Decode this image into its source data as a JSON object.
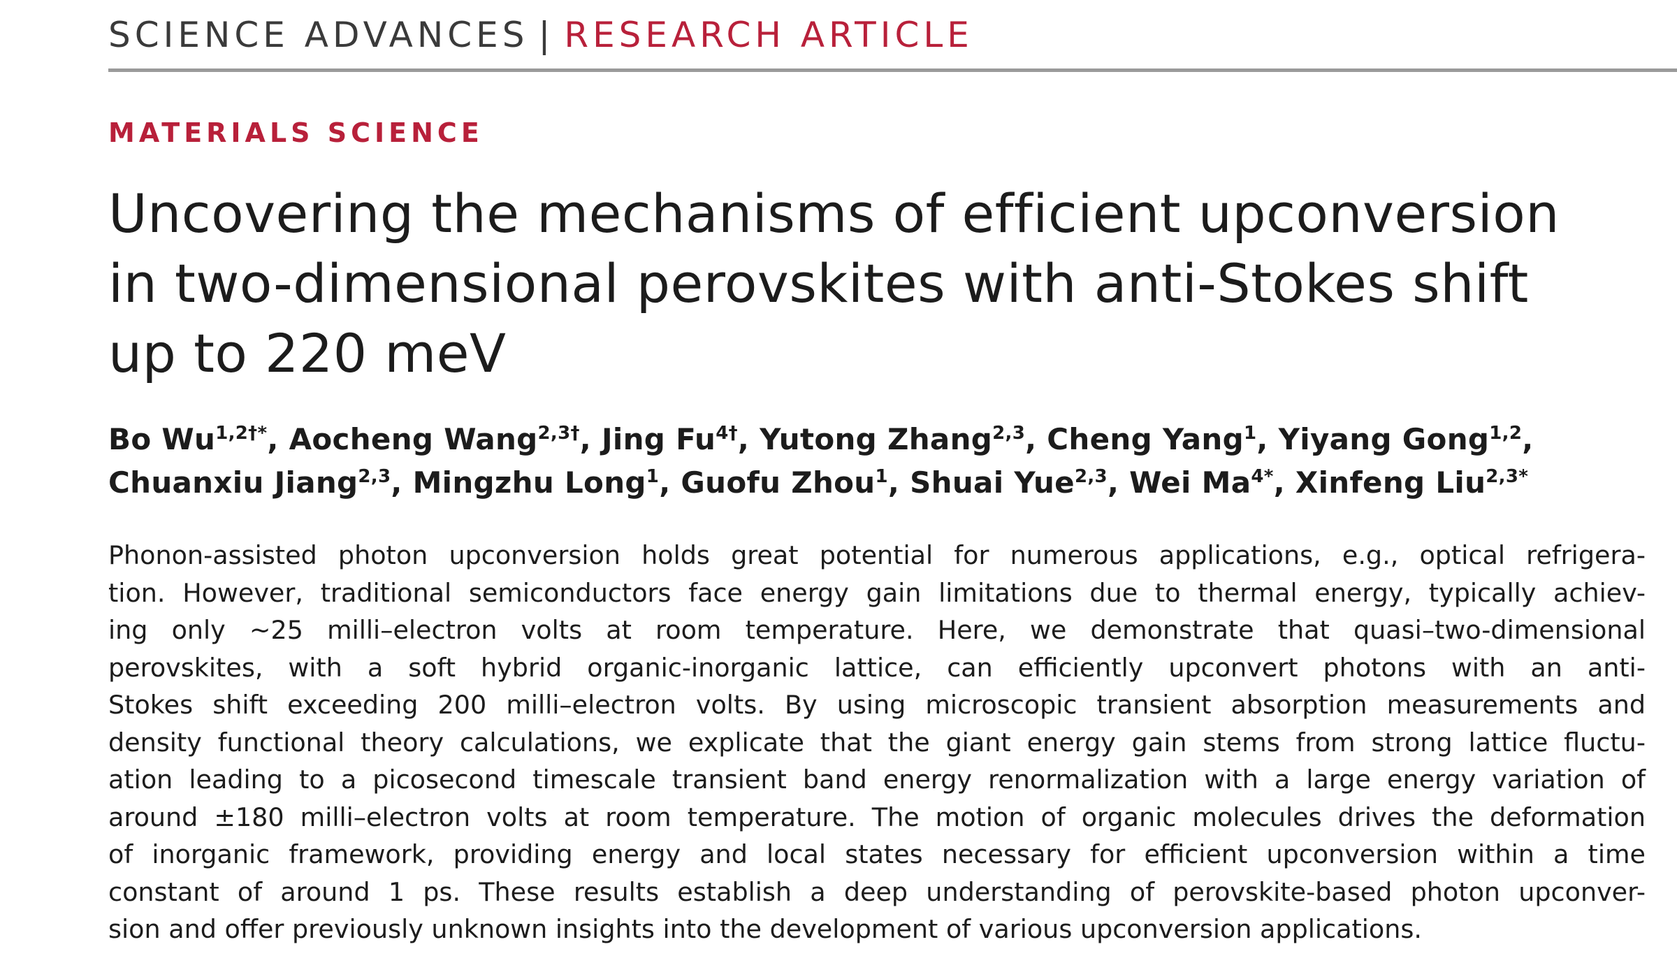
{
  "header": {
    "journal": "SCIENCE ADVANCES",
    "separator": "|",
    "article_type": "RESEARCH ARTICLE"
  },
  "section_label": "MATERIALS SCIENCE",
  "title_lines": [
    "Uncovering the mechanisms of efficient upconversion",
    "in two-dimensional perovskites with anti-Stokes shift",
    "up to 220 meV"
  ],
  "authors": [
    {
      "name": "Bo Wu",
      "sup": "1,2†*"
    },
    {
      "name": "Aocheng Wang",
      "sup": "2,3†"
    },
    {
      "name": "Jing Fu",
      "sup": "4†"
    },
    {
      "name": "Yutong Zhang",
      "sup": "2,3"
    },
    {
      "name": "Cheng Yang",
      "sup": "1"
    },
    {
      "name": "Yiyang Gong",
      "sup": "1,2"
    },
    {
      "name": "Chuanxiu Jiang",
      "sup": "2,3"
    },
    {
      "name": "Mingzhu Long",
      "sup": "1"
    },
    {
      "name": "Guofu Zhou",
      "sup": "1"
    },
    {
      "name": "Shuai Yue",
      "sup": "2,3"
    },
    {
      "name": "Wei Ma",
      "sup": "4*"
    },
    {
      "name": "Xinfeng Liu",
      "sup": "2,3*"
    }
  ],
  "abstract_lines": [
    "Phonon-assisted photon upconversion holds great potential for numerous applications, e.g., optical refrigera-",
    "tion. However, traditional semiconductors face energy gain limitations due to thermal energy, typically achiev-",
    "ing only ~25 milli–electron volts at room temperature. Here, we demonstrate that quasi–two-dimensional",
    "perovskites, with a soft hybrid organic-inorganic lattice, can efficiently upconvert photons with an anti-",
    "Stokes shift exceeding 200 milli–electron volts. By using microscopic transient absorption measurements and",
    "density functional theory calculations, we explicate that the giant energy gain stems from strong lattice fluctu-",
    "ation leading to a picosecond timescale transient band energy renormalization with a large energy variation of",
    "around ±180 milli–electron volts at room temperature. The motion of organic molecules drives the deformation",
    "of inorganic framework, providing energy and local states necessary for efficient upconversion within a time",
    "constant of around 1 ps. These results establish a deep understanding of perovskite-based photon upconver-",
    "sion and offer previously unknown insights into the development of various upconversion applications."
  ],
  "colors": {
    "accent_red": "#b8203a",
    "rule_gray": "#9a9a9a",
    "text": "#1c1c1c"
  }
}
